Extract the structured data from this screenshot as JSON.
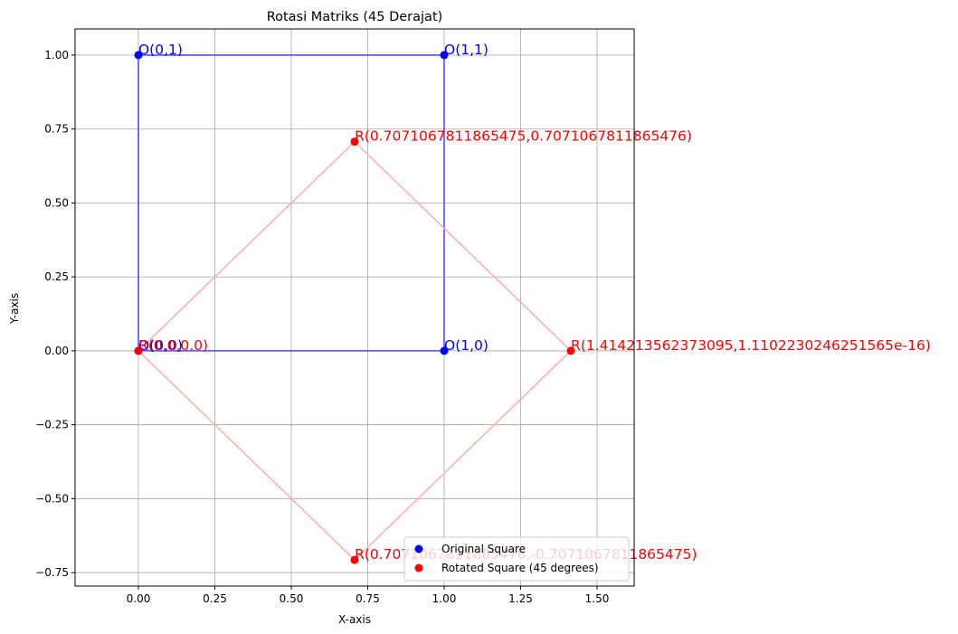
{
  "chart_data": {
    "type": "scatter",
    "title": "Rotasi Matriks (45 Derajat)",
    "xlabel": "X-axis",
    "ylabel": "Y-axis",
    "xlim": [
      -0.2071,
      1.6213
    ],
    "ylim": [
      -0.7955,
      1.0884
    ],
    "xticks": [
      0.0,
      0.25,
      0.5,
      0.75,
      1.0,
      1.25,
      1.5
    ],
    "xtick_labels": [
      "0.00",
      "0.25",
      "0.50",
      "0.75",
      "1.00",
      "1.25",
      "1.50"
    ],
    "yticks": [
      -0.75,
      -0.5,
      -0.25,
      0.0,
      0.25,
      0.5,
      0.75,
      1.0
    ],
    "ytick_labels": [
      "−0.75",
      "−0.50",
      "−0.25",
      "0.00",
      "0.25",
      "0.50",
      "0.75",
      "1.00"
    ],
    "grid": true,
    "legend_position": "lower-right",
    "series": [
      {
        "name": "Original Square",
        "color": "#0000ff",
        "line_color": "#4d4dff",
        "points": [
          {
            "x": 0,
            "y": 0,
            "label": "O(0,0)"
          },
          {
            "x": 1,
            "y": 0,
            "label": "O(1,0)"
          },
          {
            "x": 1,
            "y": 1,
            "label": "O(1,1)"
          },
          {
            "x": 0,
            "y": 1,
            "label": "O(0,1)"
          }
        ]
      },
      {
        "name": "Rotated Square (45 degrees)",
        "color": "#ff0000",
        "line_color": "#ffb0b0",
        "points": [
          {
            "x": 0.0,
            "y": 0.0,
            "label": "R(0.0,0.0)"
          },
          {
            "x": 0.7071067811865476,
            "y": -0.7071067811865475,
            "label": "R(0.7071067811865476,-0.7071067811865475)"
          },
          {
            "x": 1.414213562373095,
            "y": 1.1102230246251565e-16,
            "label": "R(1.414213562373095,1.1102230246251565e-16)"
          },
          {
            "x": 0.7071067811865475,
            "y": 0.7071067811865476,
            "label": "R(0.7071067811865475,0.7071067811865476)"
          }
        ]
      }
    ]
  }
}
